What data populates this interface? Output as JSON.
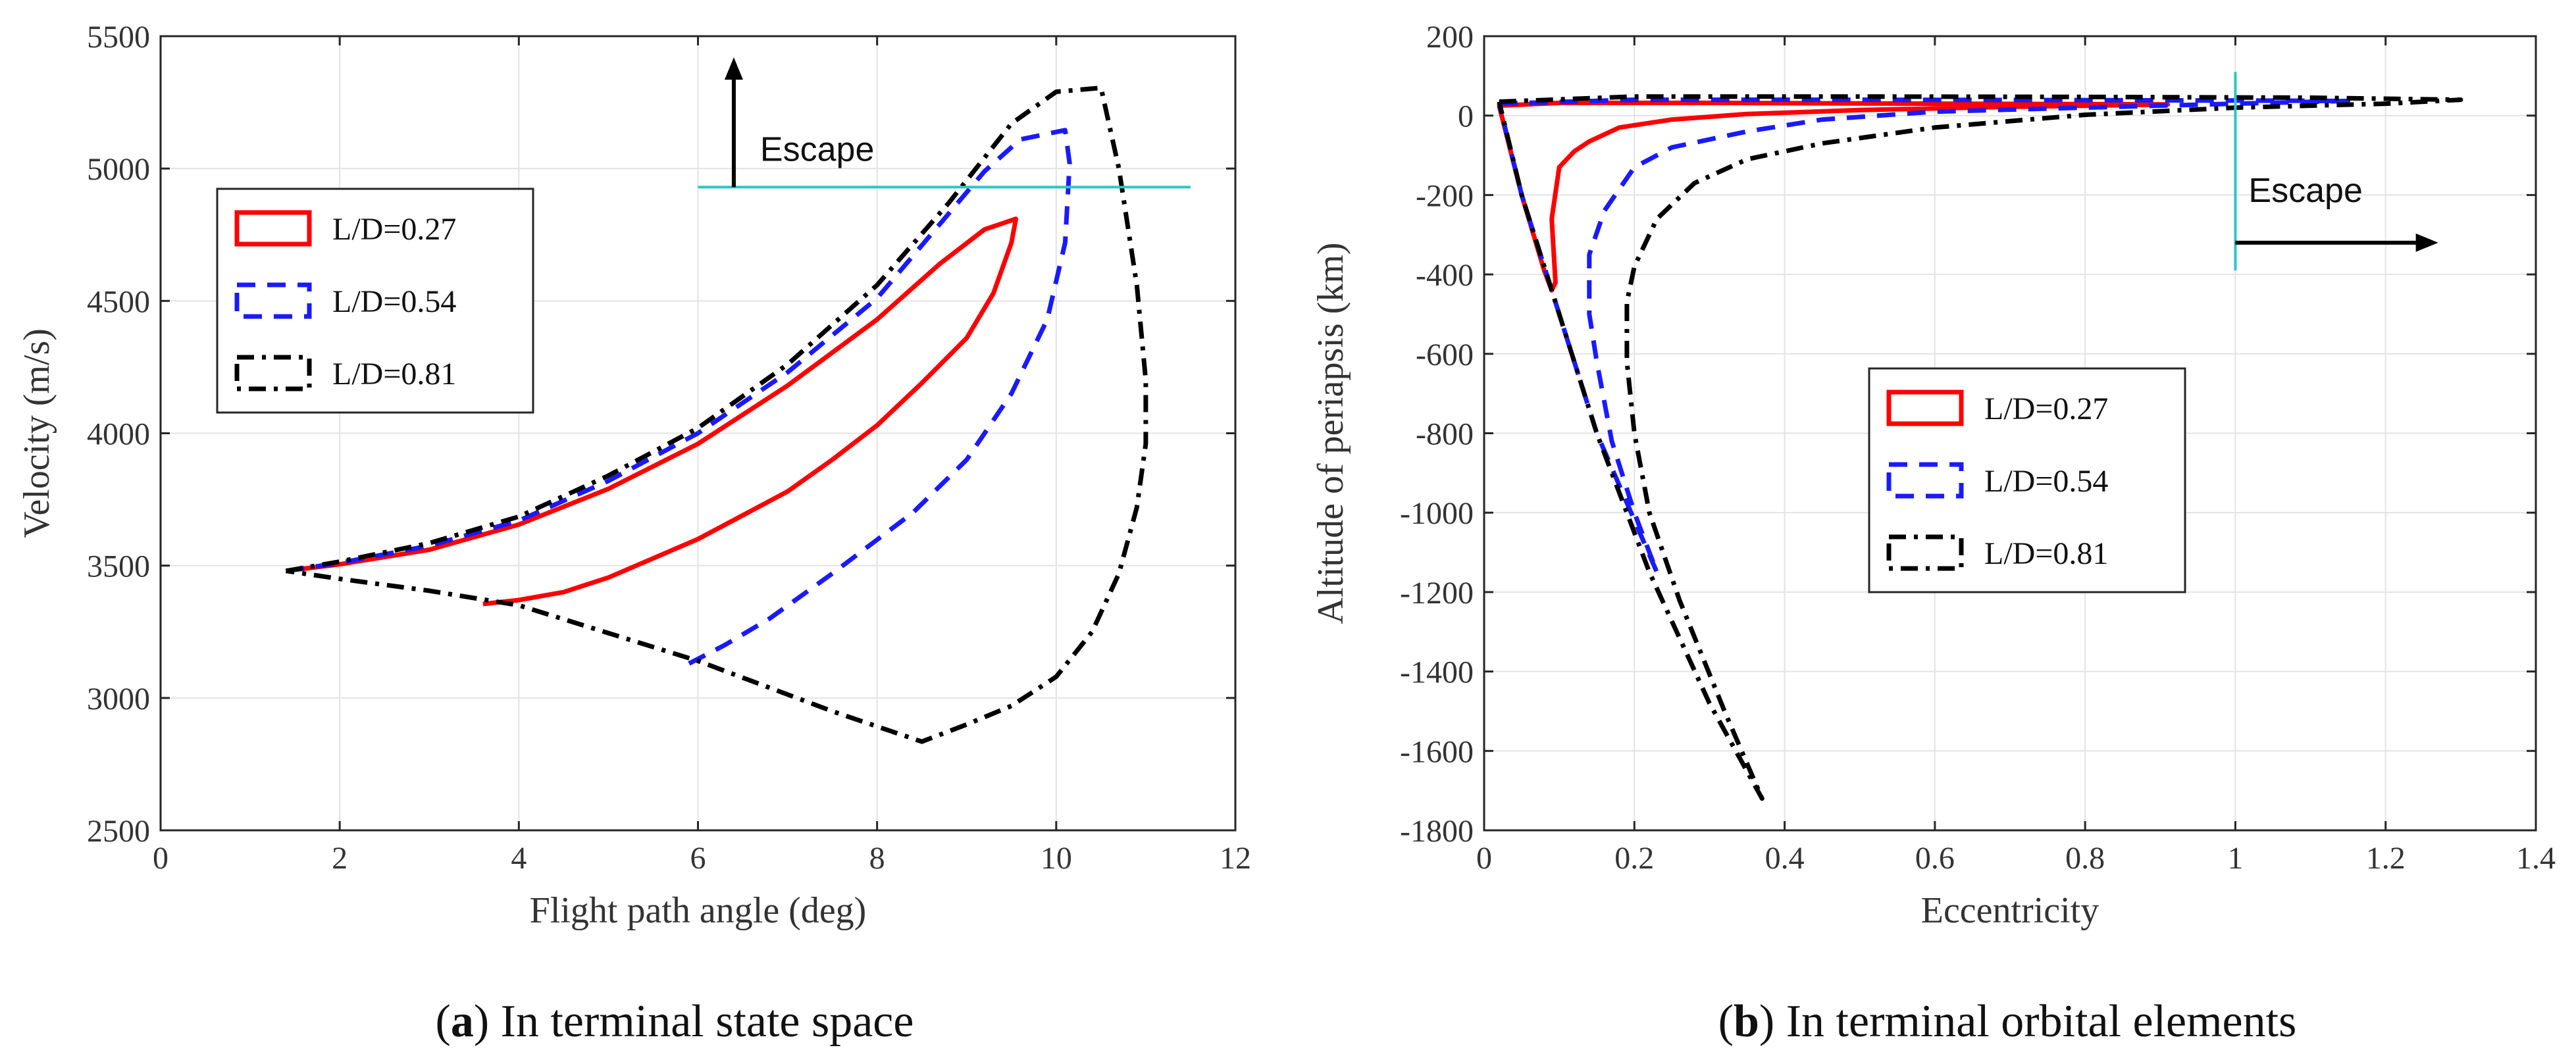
{
  "figure": {
    "caption_a_letter": "a",
    "caption_a_text": "In terminal state space",
    "caption_b_letter": "b",
    "caption_b_text": "In terminal orbital elements"
  },
  "chart_data": [
    {
      "type": "line",
      "panel": "a",
      "xlabel": "Flight path angle (deg)",
      "ylabel": "Velocity (m/s)",
      "xlim": [
        0,
        12
      ],
      "ylim": [
        2500,
        5500
      ],
      "xticks": [
        0,
        2,
        4,
        6,
        8,
        10,
        12
      ],
      "yticks": [
        2500,
        3000,
        3500,
        4000,
        4500,
        5000,
        5500
      ],
      "grid": true,
      "legend_position": "upper-left",
      "annotations": [
        {
          "text": "Escape",
          "type": "threshold-line",
          "axis": "y",
          "value": 4930,
          "x_range": [
            6,
            11.5
          ],
          "color": "#2ec4c4"
        },
        {
          "type": "arrow",
          "direction": "up",
          "at_x": 6.4
        }
      ],
      "series": [
        {
          "name": "L/D=0.27",
          "color": "#ff0000",
          "style": "solid",
          "points": [
            [
              1.4,
              3480
            ],
            [
              2,
              3505
            ],
            [
              3,
              3560
            ],
            [
              4,
              3655
            ],
            [
              5,
              3790
            ],
            [
              6,
              3960
            ],
            [
              7,
              4180
            ],
            [
              8,
              4430
            ],
            [
              8.7,
              4640
            ],
            [
              9.2,
              4770
            ],
            [
              9.55,
              4810
            ],
            [
              9.5,
              4720
            ],
            [
              9.3,
              4530
            ],
            [
              9,
              4360
            ],
            [
              8.5,
              4190
            ],
            [
              8,
              4030
            ],
            [
              7.5,
              3900
            ],
            [
              7,
              3780
            ],
            [
              6,
              3600
            ],
            [
              5,
              3455
            ],
            [
              4.5,
              3400
            ],
            [
              4,
              3370
            ],
            [
              3.6,
              3355
            ]
          ]
        },
        {
          "name": "L/D=0.54",
          "color": "#1a1aff",
          "style": "dashed",
          "points": [
            [
              1.4,
              3480
            ],
            [
              2,
              3510
            ],
            [
              3,
              3575
            ],
            [
              4,
              3670
            ],
            [
              5,
              3820
            ],
            [
              6,
              4000
            ],
            [
              7,
              4230
            ],
            [
              8,
              4510
            ],
            [
              8.7,
              4790
            ],
            [
              9.2,
              4990
            ],
            [
              9.6,
              5110
            ],
            [
              10.1,
              5145
            ],
            [
              10.15,
              5020
            ],
            [
              10.1,
              4720
            ],
            [
              9.9,
              4430
            ],
            [
              9.5,
              4150
            ],
            [
              9,
              3900
            ],
            [
              8.4,
              3700
            ],
            [
              7.5,
              3470
            ],
            [
              6.8,
              3300
            ],
            [
              6.3,
              3200
            ],
            [
              5.9,
              3130
            ]
          ]
        },
        {
          "name": "L/D=0.81",
          "color": "#000000",
          "style": "dashdot",
          "points": [
            [
              1.4,
              3480
            ],
            [
              2,
              3515
            ],
            [
              3,
              3585
            ],
            [
              4,
              3685
            ],
            [
              5,
              3840
            ],
            [
              6,
              4020
            ],
            [
              7,
              4260
            ],
            [
              8,
              4560
            ],
            [
              8.8,
              4870
            ],
            [
              9.5,
              5170
            ],
            [
              10,
              5290
            ],
            [
              10.5,
              5305
            ],
            [
              10.7,
              5000
            ],
            [
              10.9,
              4560
            ],
            [
              11,
              4200
            ],
            [
              11,
              3960
            ],
            [
              10.9,
              3720
            ],
            [
              10.7,
              3470
            ],
            [
              10.4,
              3250
            ],
            [
              10,
              3080
            ],
            [
              9.5,
              2970
            ],
            [
              9,
              2900
            ],
            [
              8.5,
              2835
            ],
            [
              7.5,
              2950
            ],
            [
              6,
              3140
            ],
            [
              4,
              3350
            ],
            [
              3,
              3405
            ],
            [
              2,
              3450
            ],
            [
              1.4,
              3480
            ]
          ]
        }
      ]
    },
    {
      "type": "line",
      "panel": "b",
      "xlabel": "Eccentricity",
      "ylabel": "Altitude of periapsis (km)",
      "xlim": [
        0,
        1.4
      ],
      "ylim": [
        -1800,
        200
      ],
      "xticks": [
        0,
        0.2,
        0.4,
        0.6,
        0.8,
        1,
        1.2,
        1.4
      ],
      "yticks": [
        -1800,
        -1600,
        -1400,
        -1200,
        -1000,
        -800,
        -600,
        -400,
        -200,
        0,
        200
      ],
      "grid": true,
      "legend_position": "center",
      "annotations": [
        {
          "text": "Escape",
          "type": "threshold-line",
          "axis": "x",
          "value": 1.0,
          "y_range": [
            -390,
            110
          ],
          "color": "#2ec4c4"
        },
        {
          "type": "arrow",
          "direction": "right",
          "at_y": -320
        }
      ],
      "series": [
        {
          "name": "L/D=0.27",
          "color": "#ff0000",
          "style": "solid",
          "points": [
            [
              0.02,
              25
            ],
            [
              0.1,
              32
            ],
            [
              0.3,
              32
            ],
            [
              0.6,
              30
            ],
            [
              0.8,
              29
            ],
            [
              0.91,
              28
            ],
            [
              0.7,
              22
            ],
            [
              0.5,
              14
            ],
            [
              0.35,
              4
            ],
            [
              0.25,
              -10
            ],
            [
              0.18,
              -30
            ],
            [
              0.14,
              -65
            ],
            [
              0.12,
              -90
            ],
            [
              0.1,
              -130
            ],
            [
              0.09,
              -260
            ],
            [
              0.095,
              -420
            ],
            [
              0.09,
              -440
            ],
            [
              0.08,
              -390
            ],
            [
              0.05,
              -200
            ],
            [
              0.02,
              25
            ]
          ]
        },
        {
          "name": "L/D=0.54",
          "color": "#1a1aff",
          "style": "dashed",
          "points": [
            [
              0.02,
              30
            ],
            [
              0.2,
              40
            ],
            [
              0.5,
              40
            ],
            [
              0.8,
              39
            ],
            [
              1.0,
              38
            ],
            [
              1.15,
              37
            ],
            [
              1.0,
              30
            ],
            [
              0.8,
              20
            ],
            [
              0.6,
              10
            ],
            [
              0.45,
              -10
            ],
            [
              0.35,
              -40
            ],
            [
              0.25,
              -80
            ],
            [
              0.2,
              -130
            ],
            [
              0.16,
              -240
            ],
            [
              0.14,
              -350
            ],
            [
              0.14,
              -500
            ],
            [
              0.15,
              -620
            ],
            [
              0.17,
              -820
            ],
            [
              0.2,
              -1000
            ],
            [
              0.23,
              -1150
            ],
            [
              0.15,
              -800
            ],
            [
              0.09,
              -440
            ],
            [
              0.05,
              -200
            ],
            [
              0.02,
              30
            ]
          ]
        },
        {
          "name": "L/D=0.81",
          "color": "#000000",
          "style": "dashdot",
          "points": [
            [
              0.02,
              35
            ],
            [
              0.2,
              48
            ],
            [
              0.5,
              48
            ],
            [
              0.8,
              47
            ],
            [
              1.1,
              45
            ],
            [
              1.3,
              40
            ],
            [
              1.2,
              30
            ],
            [
              1.0,
              20
            ],
            [
              0.8,
              2
            ],
            [
              0.6,
              -30
            ],
            [
              0.45,
              -70
            ],
            [
              0.35,
              -110
            ],
            [
              0.28,
              -170
            ],
            [
              0.23,
              -260
            ],
            [
              0.2,
              -380
            ],
            [
              0.19,
              -470
            ],
            [
              0.19,
              -620
            ],
            [
              0.2,
              -800
            ],
            [
              0.22,
              -1000
            ],
            [
              0.26,
              -1220
            ],
            [
              0.32,
              -1500
            ],
            [
              0.37,
              -1720
            ],
            [
              0.3,
              -1480
            ],
            [
              0.22,
              -1150
            ],
            [
              0.15,
              -800
            ],
            [
              0.09,
              -440
            ],
            [
              0.05,
              -200
            ],
            [
              0.02,
              35
            ]
          ]
        }
      ]
    }
  ]
}
